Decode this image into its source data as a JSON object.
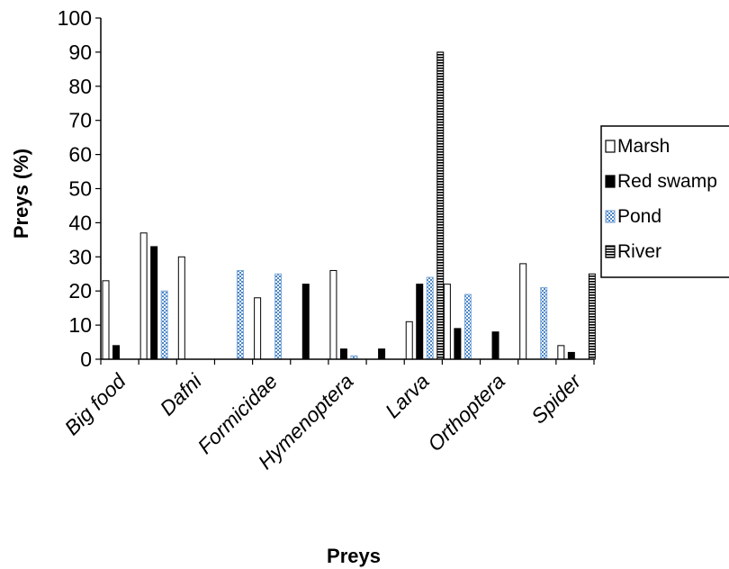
{
  "chart_data": {
    "type": "bar",
    "xlabel": "Preys",
    "ylabel": "Preys (%)",
    "ylim": [
      0,
      100
    ],
    "yticks": [
      0,
      10,
      20,
      30,
      40,
      50,
      60,
      70,
      80,
      90,
      100
    ],
    "grid": false,
    "legend_position": "right",
    "categories": [
      "Big food",
      "",
      "Dafni",
      "",
      "Formicidae",
      "",
      "Hymenoptera",
      "",
      "Larva",
      "",
      "Orthoptera",
      "",
      "Spider"
    ],
    "series": [
      {
        "name": "Marsh",
        "pattern": "white",
        "values": [
          23,
          37,
          30,
          0,
          18,
          0,
          26,
          0,
          11,
          22,
          0,
          28,
          4
        ]
      },
      {
        "name": "Red swamp",
        "pattern": "black",
        "values": [
          4,
          33,
          0,
          0,
          0,
          22,
          3,
          3,
          22,
          9,
          8,
          0,
          2
        ]
      },
      {
        "name": "Pond",
        "pattern": "dotted-blue",
        "values": [
          0,
          20,
          0,
          26,
          25,
          0,
          1,
          0,
          24,
          19,
          0,
          21,
          0
        ]
      },
      {
        "name": "River",
        "pattern": "striped-black",
        "values": [
          0,
          0,
          0,
          0,
          0,
          0,
          0,
          0,
          90,
          0,
          0,
          0,
          25
        ]
      }
    ]
  }
}
